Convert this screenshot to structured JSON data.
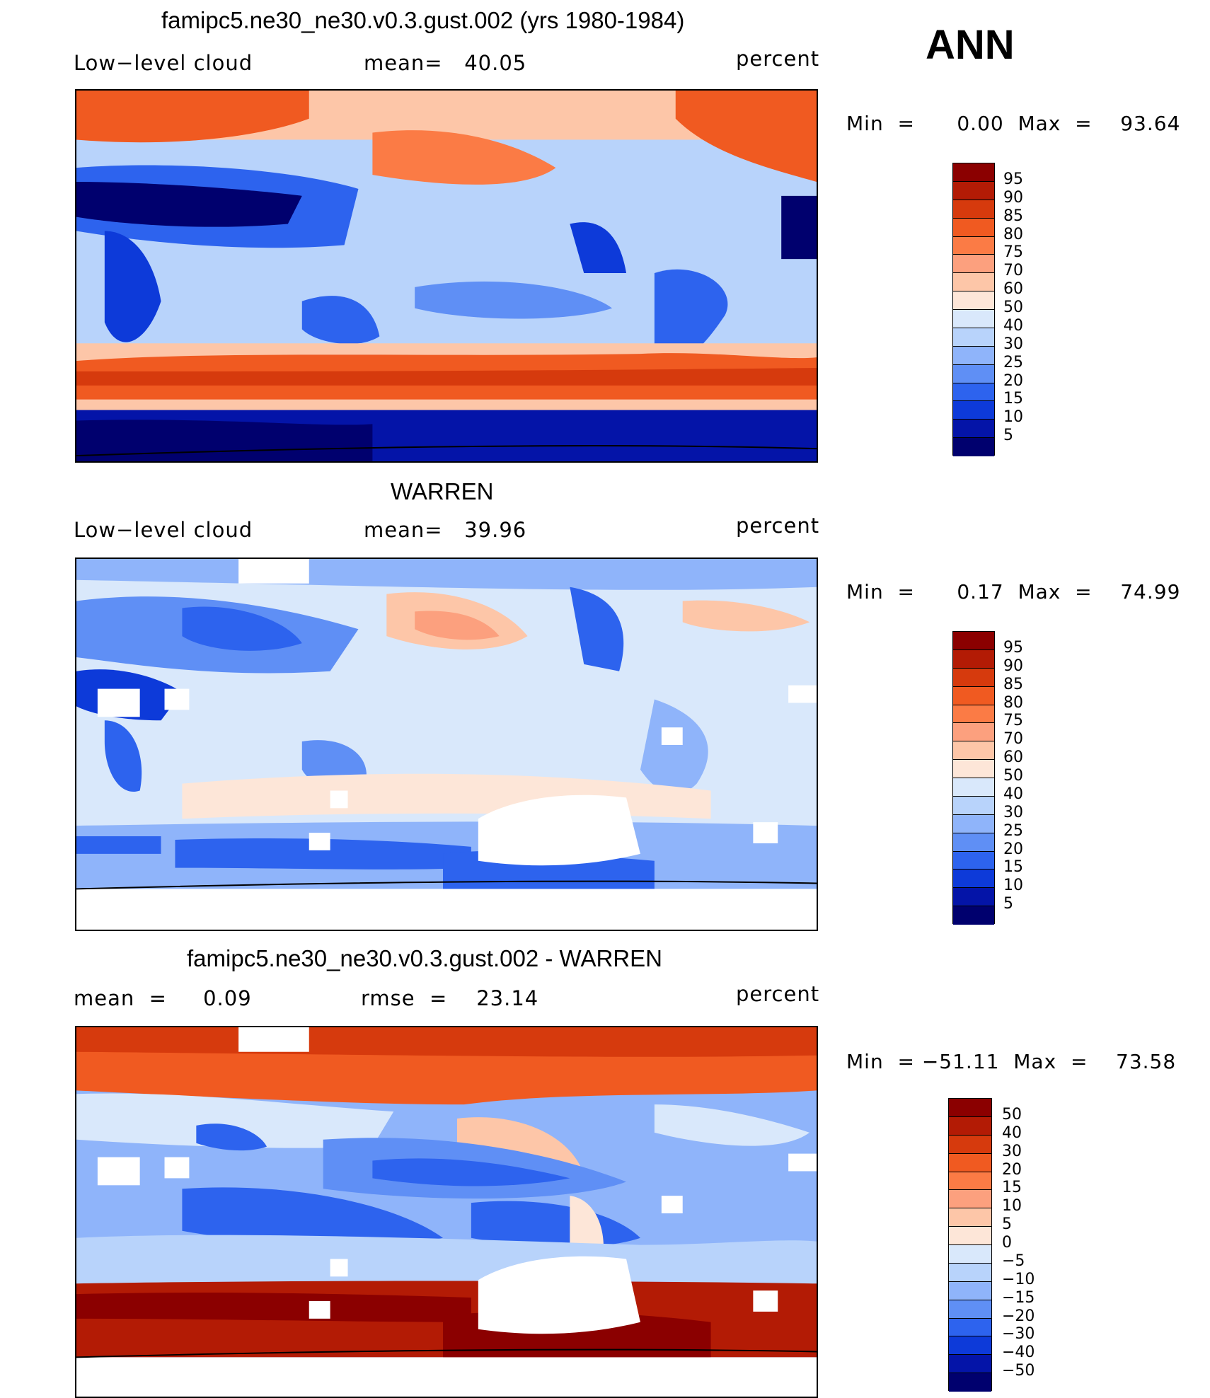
{
  "ann_label": "ANN",
  "panels": [
    {
      "title": "famipc5.ne30_ne30.v0.3.gust.002 (yrs 1980-1984)",
      "left_label": "Low−level cloud",
      "center_label": "mean=   40.05",
      "right_label": "percent",
      "minmax": "Min  =      0.00  Max  =    93.64",
      "colorbar_labels": [
        "95",
        "90",
        "85",
        "80",
        "75",
        "70",
        "60",
        "50",
        "40",
        "30",
        "25",
        "20",
        "15",
        "10",
        "5"
      ]
    },
    {
      "title": "WARREN",
      "left_label": "Low−level cloud",
      "center_label": "mean=   39.96",
      "right_label": "percent",
      "minmax": "Min  =      0.17  Max  =    74.99",
      "colorbar_labels": [
        "95",
        "90",
        "85",
        "80",
        "75",
        "70",
        "60",
        "50",
        "40",
        "30",
        "25",
        "20",
        "15",
        "10",
        "5"
      ]
    },
    {
      "title": "famipc5.ne30_ne30.v0.3.gust.002 - WARREN",
      "left_label": "mean  =     0.09",
      "center_label": "rmse  =    23.14",
      "right_label": "percent",
      "minmax": "Min  = −51.11  Max  =    73.58",
      "colorbar_labels": [
        "50",
        "40",
        "30",
        "20",
        "15",
        "10",
        "5",
        "0",
        "−5",
        "−10",
        "−15",
        "−20",
        "−30",
        "−40",
        "−50"
      ]
    }
  ],
  "colors": {
    "palette": [
      "#8b0000",
      "#b31b05",
      "#d63a0d",
      "#f05a21",
      "#fb7b45",
      "#fca07e",
      "#fdc6a8",
      "#fde6d8",
      "#d9e8fb",
      "#b8d3fb",
      "#8fb4fa",
      "#5f8ff5",
      "#2d63ee",
      "#0d3ad9",
      "#0414a8",
      "#00006e"
    ]
  }
}
